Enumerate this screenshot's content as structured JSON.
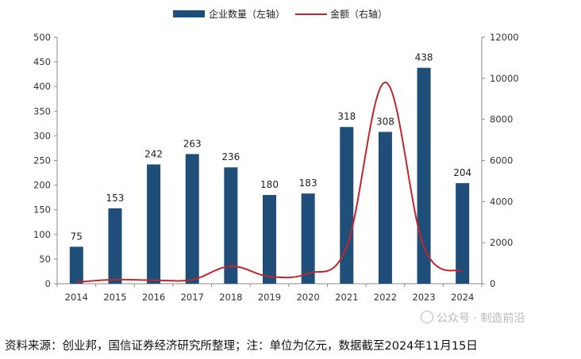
{
  "chart_data": {
    "type": "bar+line",
    "title": "",
    "categories": [
      "2014",
      "2015",
      "2016",
      "2017",
      "2018",
      "2019",
      "2020",
      "2021",
      "2022",
      "2023",
      "2024"
    ],
    "series": [
      {
        "name": "企业数量（左轴）",
        "type": "bar",
        "axis": "left",
        "color": "#1f4e79",
        "values": [
          75,
          153,
          242,
          263,
          236,
          180,
          183,
          318,
          308,
          438,
          204
        ]
      },
      {
        "name": "金额（右轴）",
        "type": "line",
        "axis": "right",
        "color": "#c0262d",
        "values": [
          80,
          200,
          170,
          200,
          850,
          350,
          500,
          1800,
          9800,
          1800,
          600
        ]
      }
    ],
    "y_left": {
      "min": 0,
      "max": 500,
      "ticks": [
        0,
        50,
        100,
        150,
        200,
        250,
        300,
        350,
        400,
        450,
        500
      ]
    },
    "y_right": {
      "min": 0,
      "max": 12000,
      "ticks": [
        0,
        2000,
        4000,
        6000,
        8000,
        10000,
        12000
      ]
    },
    "legend_position": "top-center",
    "grid": false
  },
  "legend": {
    "bar_label": "企业数量（左轴）",
    "line_label": "金额（右轴）"
  },
  "source_text": "资料来源：创业邦，国信证券经济研究所整理；注：单位为亿元，数据截至2024年11月15日",
  "watermark": "公众号 · 制造前沿"
}
